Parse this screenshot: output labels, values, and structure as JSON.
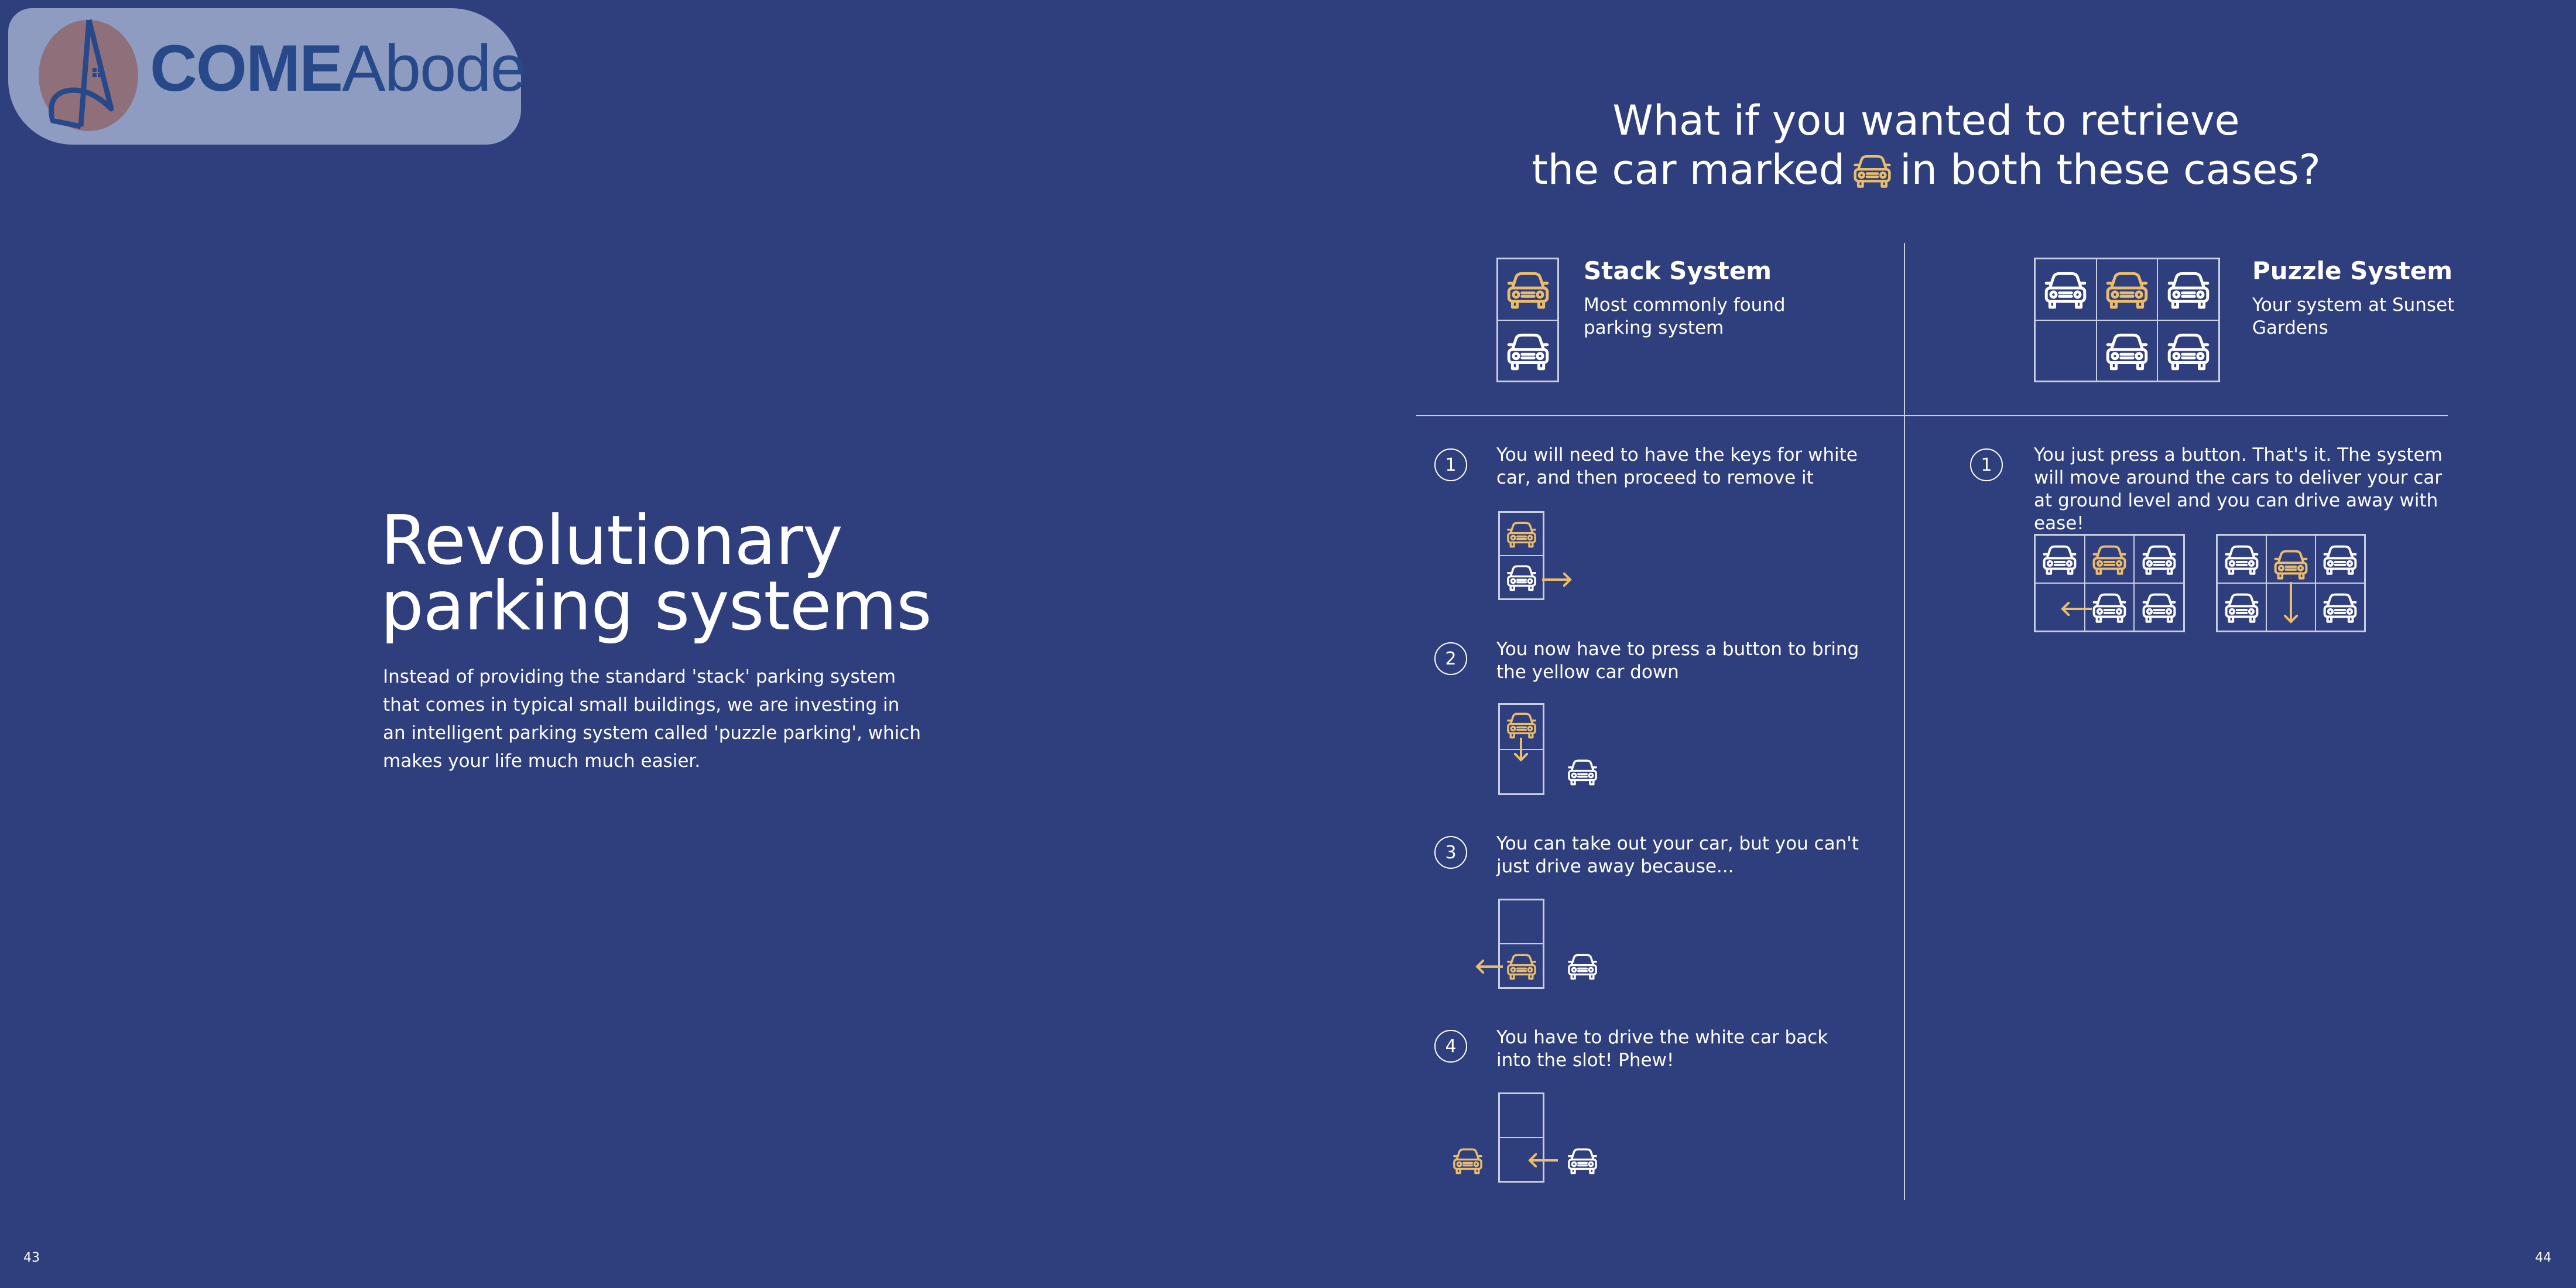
{
  "logo": {
    "text_bold": "COME",
    "text_light": "Abode"
  },
  "left_page": {
    "title_line1": "Revolutionary",
    "title_line2": "parking systems",
    "intro": "Instead of providing the standard 'stack' parking system that comes in typical small buildings, we are investing in an intelligent parking system called 'puzzle parking', which makes your life much much easier.",
    "page_number": "43"
  },
  "right_page": {
    "heading_line1": "What if you wanted to retrieve",
    "heading_line2_before": "the car marked",
    "heading_line2_after": "in both these cases?",
    "page_number": "44",
    "stack": {
      "title": "Stack System",
      "subtitle": "Most commonly found parking system",
      "grid": [
        [
          "yellow"
        ],
        [
          "white"
        ]
      ],
      "steps": [
        {
          "number": "1",
          "text": "You will need to have the keys for white car, and then proceed to remove it"
        },
        {
          "number": "2",
          "text": "You now have to press a button to bring the yellow car down"
        },
        {
          "number": "3",
          "text": "You can take out your car, but you can't just drive away because..."
        },
        {
          "number": "4",
          "text": "You have to drive the white car back into the slot! Phew!"
        }
      ]
    },
    "puzzle": {
      "title": "Puzzle System",
      "subtitle": "Your system at Sunset Gardens",
      "grid": [
        [
          "white",
          "yellow",
          "white"
        ],
        [
          "empty",
          "white",
          "white"
        ]
      ],
      "steps": [
        {
          "number": "1",
          "text": "You just press a button. That's it. The system will move around the cars to deliver your car at ground level and you can drive away with ease!"
        }
      ]
    }
  },
  "colors": {
    "background": "#2f3e7d",
    "accent_yellow": "#e9bd6c",
    "text": "#ffffff",
    "logo_panel": "#8e9cc1",
    "logo_blue": "#27498a"
  },
  "icons": {
    "car": "car-front-icon",
    "arrow": "arrow-icon"
  }
}
